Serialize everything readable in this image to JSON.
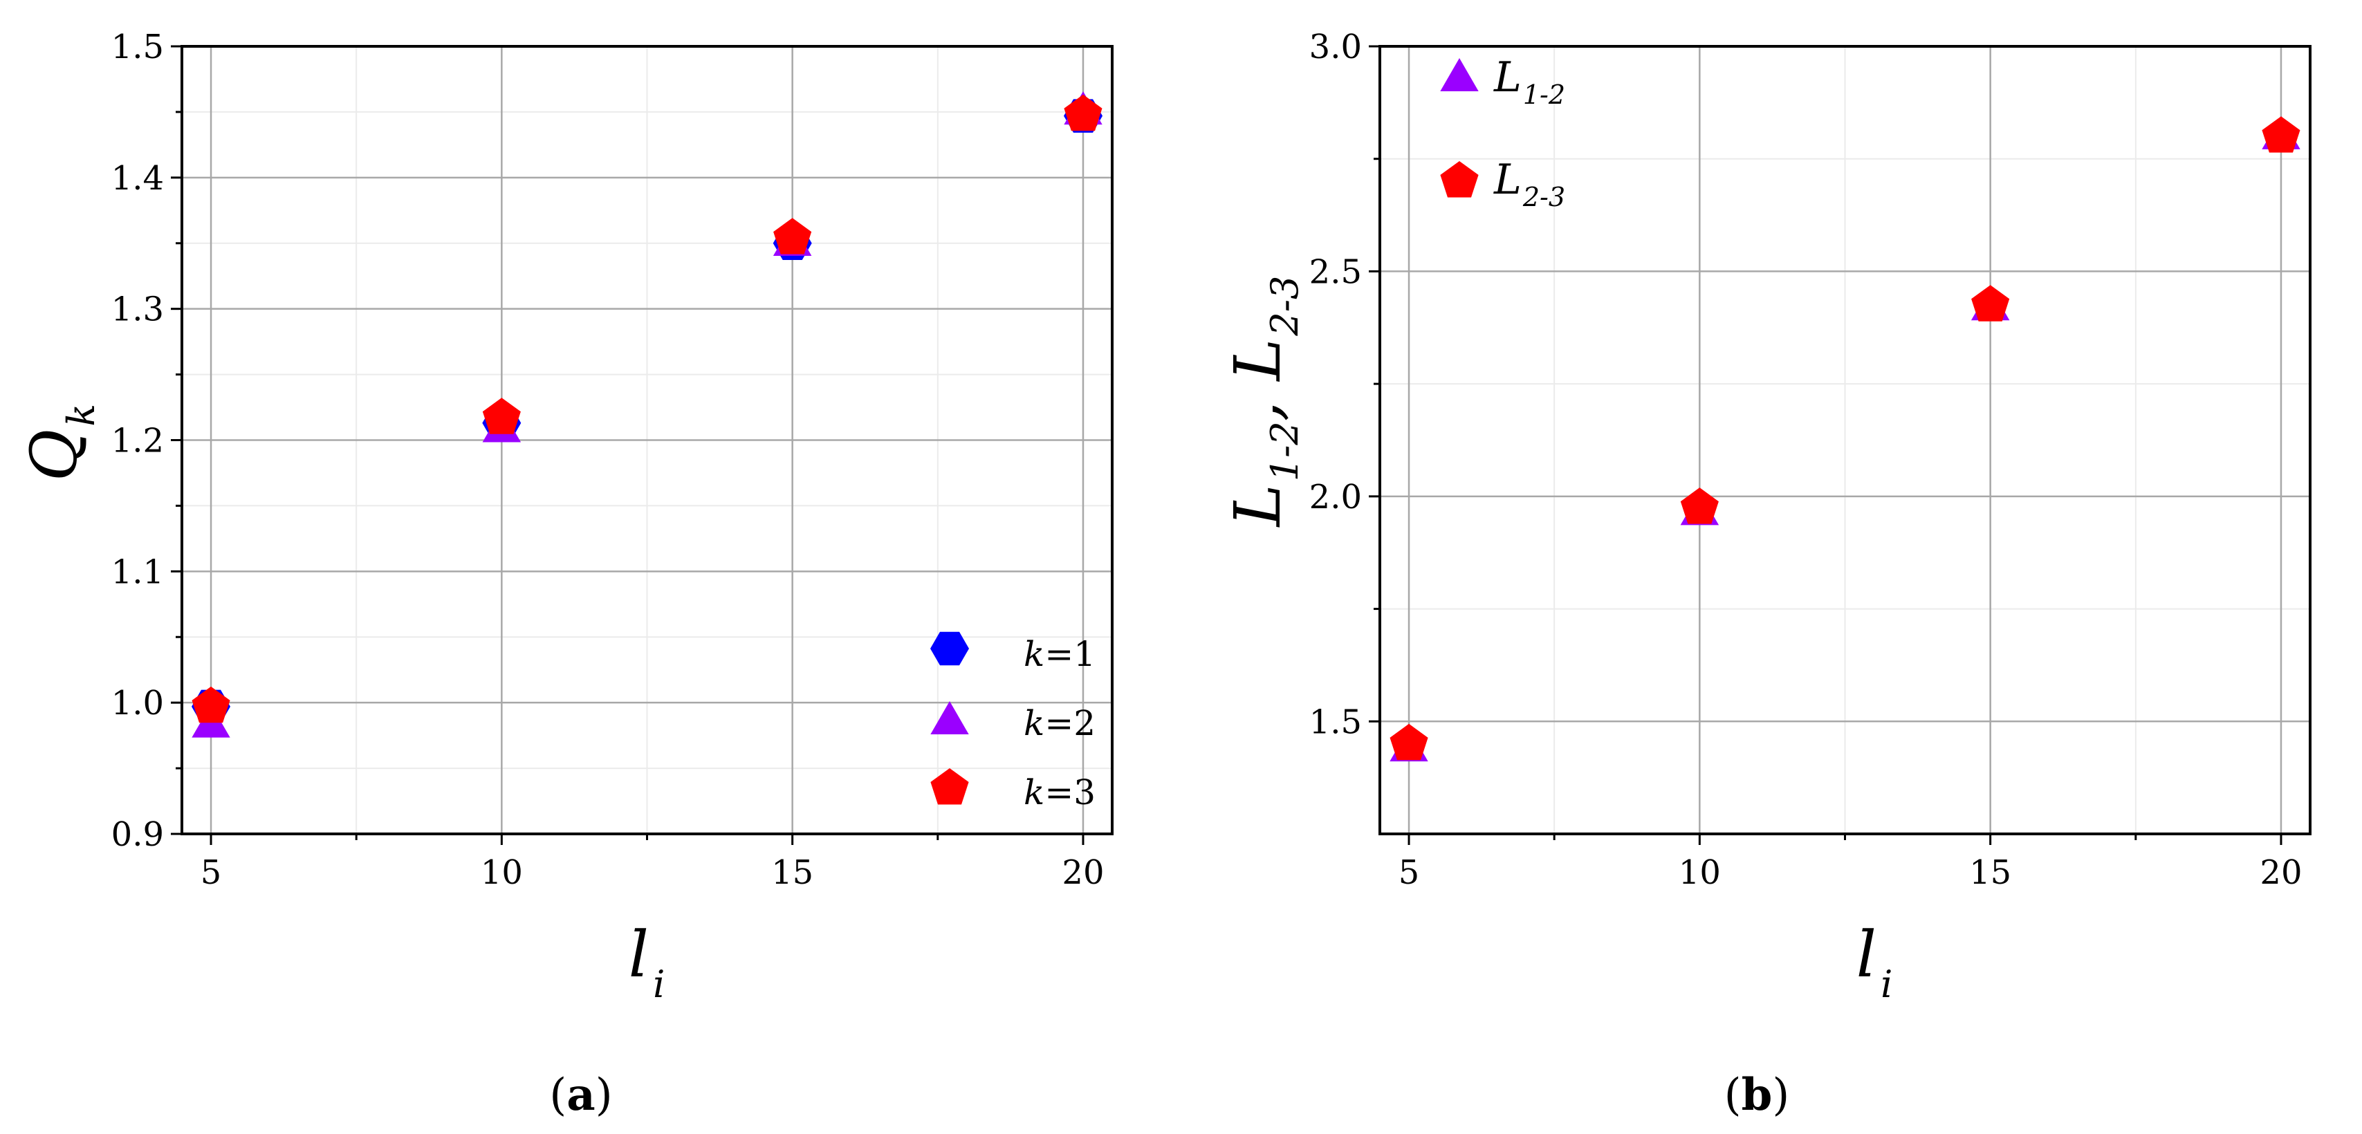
{
  "chart_data": [
    {
      "type": "scatter",
      "xlabel": {
        "base": "l",
        "sub": "i"
      },
      "ylabel": {
        "base": "Q",
        "sub": "k"
      },
      "xlim": [
        4.5,
        20.5
      ],
      "ylim": [
        0.9,
        1.5
      ],
      "xticks": [
        "5",
        "10",
        "15",
        "20"
      ],
      "yticks": [
        "0.9",
        "1.0",
        "1.1",
        "1.2",
        "1.3",
        "1.4",
        "1.5"
      ],
      "grid": true,
      "legend_position": "bottom-right",
      "series": [
        {
          "name": "k=1",
          "label_italic": "k",
          "label_rest": "=1",
          "marker": "hexagon",
          "color": "#0000ff",
          "x": [
            5,
            10,
            15,
            20
          ],
          "y": [
            0.997,
            1.213,
            1.35,
            1.447
          ]
        },
        {
          "name": "k=2",
          "label_italic": "k",
          "label_rest": "=2",
          "marker": "triangle",
          "color": "#9a00ff",
          "x": [
            5,
            10,
            15,
            20
          ],
          "y": [
            0.985,
            1.21,
            1.352,
            1.452
          ]
        },
        {
          "name": "k=3",
          "label_italic": "k",
          "label_rest": "=3",
          "marker": "pentagon",
          "color": "#ff0000",
          "x": [
            5,
            10,
            15,
            20
          ],
          "y": [
            0.997,
            1.217,
            1.354,
            1.448
          ]
        }
      ],
      "caption": {
        "open": "(",
        "letter": "a",
        "close": ")"
      }
    },
    {
      "type": "scatter",
      "xlabel": {
        "base": "l",
        "sub": "i"
      },
      "ylabel": {
        "base1": "L",
        "sub1": "1-2",
        "sep": ", ",
        "base2": "L",
        "sub2": "2-3"
      },
      "xlim": [
        4.5,
        20.5
      ],
      "ylim": [
        1.25,
        3.0
      ],
      "xticks": [
        "5",
        "10",
        "15",
        "20"
      ],
      "yticks": [
        "1.5",
        "2.0",
        "2.5",
        "3.0"
      ],
      "grid": true,
      "legend_position": "top-left",
      "series": [
        {
          "name": "L1-2",
          "label_base": "L",
          "label_sub": "1-2",
          "marker": "triangle",
          "color": "#9a00ff",
          "x": [
            5,
            10,
            15,
            20
          ],
          "y": [
            1.445,
            1.97,
            2.425,
            2.805
          ]
        },
        {
          "name": "L2-3",
          "label_base": "L",
          "label_sub": "2-3",
          "marker": "pentagon",
          "color": "#ff0000",
          "x": [
            5,
            10,
            15,
            20
          ],
          "y": [
            1.45,
            1.975,
            2.425,
            2.8
          ]
        }
      ],
      "caption": {
        "open": "(",
        "letter": "b",
        "close": ")"
      }
    }
  ]
}
